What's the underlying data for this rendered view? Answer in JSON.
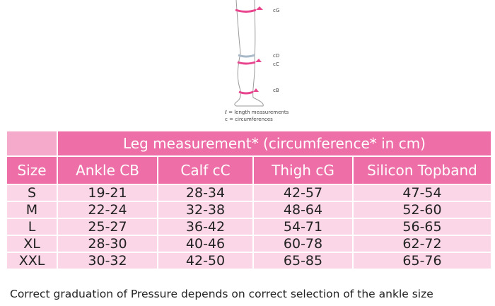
{
  "diagram": {
    "labels": [
      "cG",
      "cD",
      "cC",
      "cB"
    ],
    "legend": [
      "ℓ = length measurements",
      "c = circumferences"
    ]
  },
  "table": {
    "group_header": "Leg measurement* (circumference* in cm)",
    "columns": [
      "Size",
      "Ankle CB",
      "Calf cC",
      "Thigh cG",
      "Silicon Topband"
    ],
    "rows": [
      [
        "S",
        "19-21",
        "28-34",
        "42-57",
        "47-54"
      ],
      [
        "M",
        "22-24",
        "32-38",
        "48-64",
        "52-60"
      ],
      [
        "L",
        "25-27",
        "36-42",
        "54-71",
        "56-65"
      ],
      [
        "XL",
        "28-30",
        "40-46",
        "60-78",
        "62-72"
      ],
      [
        "XXL",
        "30-32",
        "42-50",
        "65-85",
        "65-76"
      ]
    ]
  },
  "footnote": "Correct graduation of Pressure depends on correct selection of the ankle size"
}
